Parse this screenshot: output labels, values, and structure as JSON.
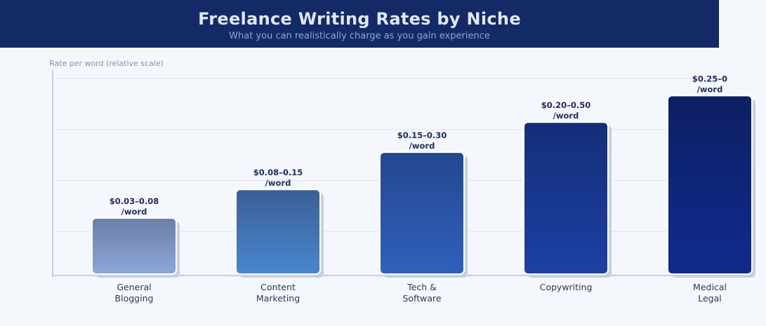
{
  "header": {
    "title": "Freelance Writing Rates by Niche",
    "subtitle": "What you can realistically charge as you gain experience"
  },
  "chart_data": {
    "type": "bar",
    "title": "Freelance Writing Rates by Niche",
    "subtitle": "What you can realistically charge as you gain experience",
    "ylabel": "Rate per word (relative scale)",
    "xlabel": "",
    "categories": [
      "General\nBlogging",
      "Content\nMarketing",
      "Tech &\nSoftware",
      "Copywriting",
      "Medical\nLegal"
    ],
    "values": [
      1.1,
      1.66,
      2.39,
      2.98,
      3.5
    ],
    "data_labels": [
      "$0.03–0.08\n/word",
      "$0.08–0.15\n/word",
      "$0.15–0.30\n/word",
      "$0.20–0.50\n/word",
      "$0.25–0\n/word"
    ],
    "ylim": [
      0,
      4
    ],
    "grid": true,
    "colors": [
      [
        "#6a7fa8",
        "#8ea7d8"
      ],
      [
        "#3a5f96",
        "#4a87cf"
      ],
      [
        "#24488f",
        "#3060bc"
      ],
      [
        "#142e78",
        "#1c40a4"
      ],
      [
        "#0d1f63",
        "#102b8e"
      ]
    ]
  }
}
